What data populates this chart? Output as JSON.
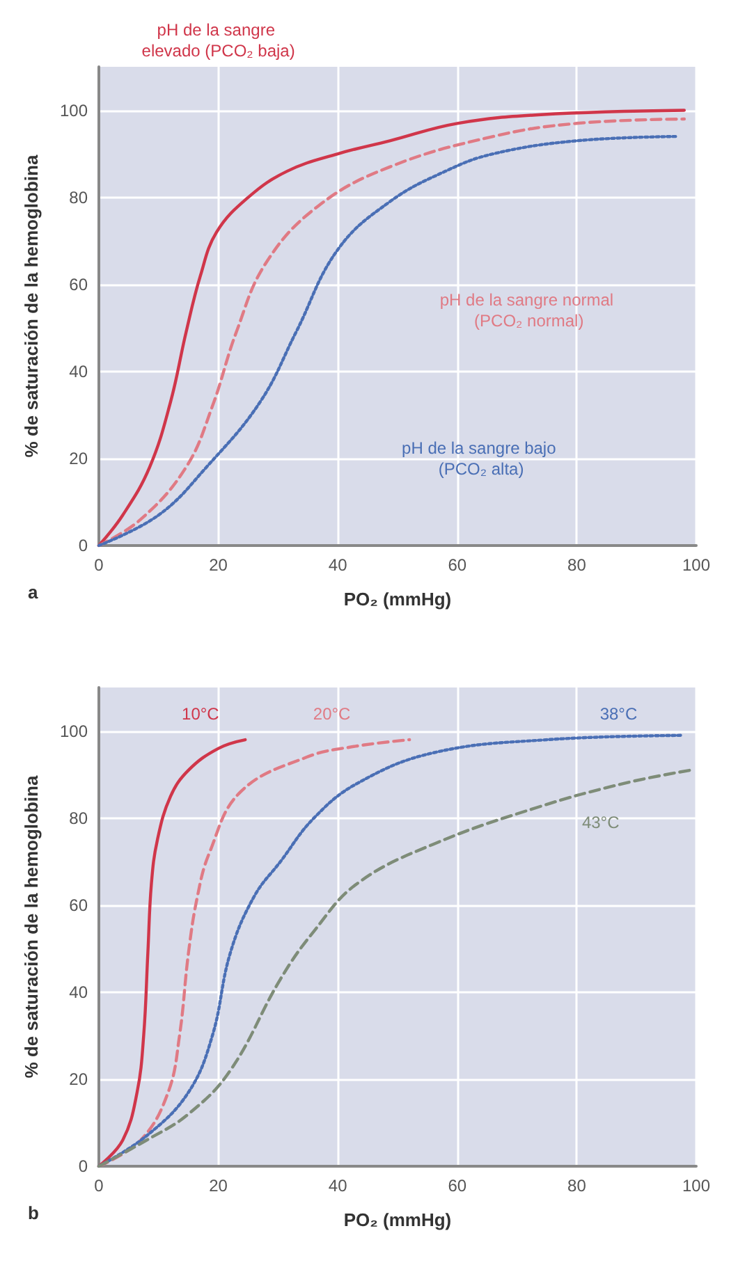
{
  "chart_data": [
    {
      "type": "line",
      "xlabel": "PO₂ (mmHg)",
      "ylabel": "% de saturación de la hemoglobina",
      "annotations": [
        "a"
      ],
      "xlim": [
        0,
        100
      ],
      "ylim": [
        0,
        110
      ],
      "xticks": [
        0,
        20,
        40,
        60,
        80,
        100
      ],
      "yticks": [
        0,
        20,
        40,
        60,
        80,
        100
      ],
      "grid": true,
      "legend": false,
      "marker": "none",
      "series": [
        {
          "name": "pH de la sangre elevado (PCO₂ baja)",
          "color": "#d0364a",
          "line_style": "solid",
          "x": [
            0,
            4,
            8.5,
            12,
            14.6,
            17,
            19.7,
            25,
            31.5,
            40,
            48.7,
            60,
            74,
            98
          ],
          "values": [
            0,
            7,
            18,
            33,
            49,
            62,
            72,
            80,
            86,
            90,
            93,
            97,
            99,
            100
          ]
        },
        {
          "name": "pH de la sangre normal (PCO₂ normal)",
          "color": "#e07a84",
          "line_style": "dashed",
          "x": [
            0,
            7,
            14.6,
            19,
            23,
            28,
            36.7,
            48.7,
            66,
            80,
            98
          ],
          "values": [
            0,
            6,
            18,
            32,
            49,
            65,
            78,
            87,
            94,
            97,
            98
          ]
        },
        {
          "name": "pH de la sangre bajo (PCO₂ alta)",
          "color": "#4a6fb5",
          "line_style": "dotted",
          "x": [
            0,
            10,
            18,
            27,
            33,
            40,
            48.7,
            58,
            66,
            80,
            97
          ],
          "values": [
            0,
            7,
            18,
            33,
            49,
            68,
            79,
            86,
            90,
            93,
            94
          ]
        }
      ]
    },
    {
      "type": "line",
      "xlabel": "PO₂ (mmHg)",
      "ylabel": "% de saturación de la hemoglobina",
      "annotations": [
        "b"
      ],
      "xlim": [
        0,
        100
      ],
      "ylim": [
        0,
        110
      ],
      "xticks": [
        0,
        20,
        40,
        60,
        80,
        100
      ],
      "yticks": [
        0,
        20,
        40,
        60,
        80,
        100
      ],
      "grid": true,
      "legend": false,
      "marker": "none",
      "series": [
        {
          "name": "10°C",
          "color": "#d0364a",
          "line_style": "solid",
          "x": [
            0,
            4,
            6.4,
            7.5,
            8.2,
            8.8,
            9.8,
            12,
            15,
            20,
            24.5
          ],
          "values": [
            0,
            6,
            17,
            30,
            49,
            65,
            75,
            85,
            91,
            96,
            98
          ]
        },
        {
          "name": "20°C",
          "color": "#e07a84",
          "line_style": "dashed",
          "x": [
            0,
            7,
            11.6,
            13.5,
            15,
            16.5,
            18.5,
            23.7,
            34.8,
            43,
            52
          ],
          "values": [
            0,
            6,
            17,
            30,
            49,
            62,
            72,
            86,
            94,
            96.5,
            98
          ]
        },
        {
          "name": "38°C",
          "color": "#4a6fb5",
          "line_style": "dotted",
          "x": [
            0,
            8,
            15,
            19,
            22,
            26,
            30.4,
            36,
            43.3,
            56,
            75,
            97.5
          ],
          "values": [
            0,
            7,
            17,
            30,
            49,
            62,
            70,
            80,
            88,
            95,
            98,
            99
          ]
        },
        {
          "name": "43°C",
          "color": "#7e8c78",
          "line_style": "dashed",
          "x": [
            0,
            8,
            15,
            22,
            30.4,
            36,
            43.3,
            56,
            73.5,
            88,
            99
          ],
          "values": [
            0,
            6,
            12,
            22,
            43,
            54,
            65,
            74,
            82.5,
            88,
            91
          ]
        }
      ]
    }
  ]
}
